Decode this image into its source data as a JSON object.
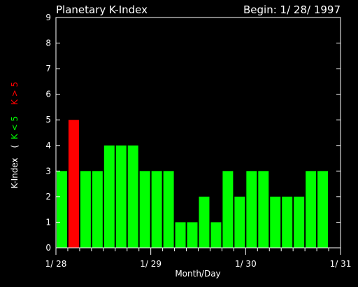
{
  "chart_data": {
    "type": "bar",
    "title": "Planetary K-Index",
    "subtitle": "Begin: 1/ 28/ 1997",
    "xlabel": "Month/Day",
    "ylabel": {
      "main": "K-Index",
      "open": "(",
      "low": "K < 5",
      "high": "K > 5"
    },
    "ylim": [
      0,
      9
    ],
    "yticks": [
      0,
      1,
      2,
      3,
      4,
      5,
      6,
      7,
      8,
      9
    ],
    "x_tick_labels": [
      "1/ 28",
      "1/ 29",
      "1/ 30",
      "1/ 31"
    ],
    "values": [
      3,
      5,
      3,
      3,
      4,
      4,
      4,
      3,
      3,
      3,
      1,
      1,
      2,
      1,
      3,
      2,
      3,
      3,
      2,
      2,
      2,
      3,
      3
    ],
    "threshold": 5,
    "colors": {
      "low": "#00ff00",
      "high": "#ff0000",
      "background": "#000000",
      "text": "#ffffff"
    }
  }
}
